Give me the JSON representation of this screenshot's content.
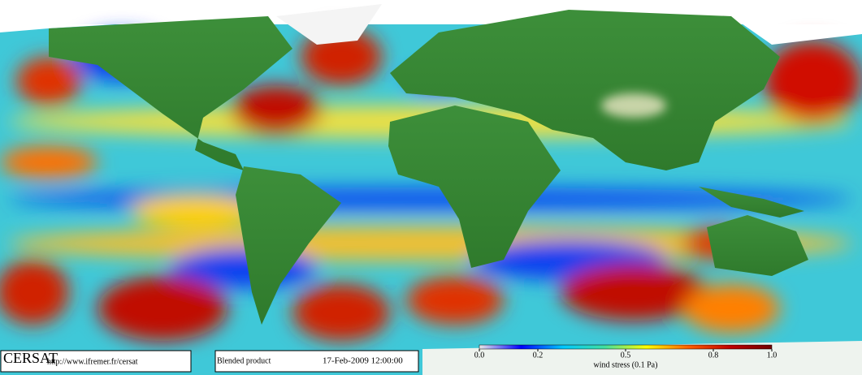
{
  "logo": {
    "title": "CERSAT",
    "url": "http://www.ifremer.fr/cersat"
  },
  "product": {
    "name": "Blended product",
    "date": "17-Feb-2009 12:00:00"
  },
  "colorbar": {
    "label": "wind stress (0.1 Pa)",
    "lim": [
      0,
      1
    ],
    "ticks": [
      {
        "value": 0,
        "label": "0.0"
      },
      0.2,
      0.5,
      0.8,
      {
        "value": 1,
        "label": "1.0"
      }
    ],
    "colors": [
      "#e8e8e8",
      "#0000ff",
      "#00c8ff",
      "#40e0a0",
      "#ffff00",
      "#ff6000",
      "#c00000",
      "#700000"
    ]
  }
}
